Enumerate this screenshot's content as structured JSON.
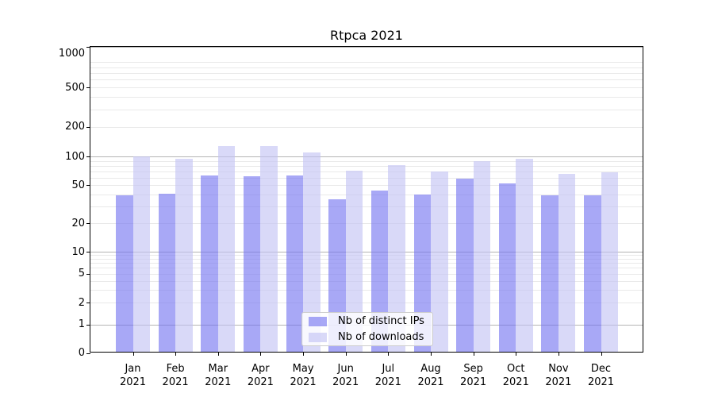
{
  "title": "Rtpca 2021",
  "chart_data": {
    "type": "bar",
    "title": "Rtpca 2021",
    "yscale": "symlog",
    "grid": "horizontal major and minor, log-spaced",
    "legend_position": "lower center inside plot",
    "x_year": "2021",
    "categories": [
      "Jan",
      "Feb",
      "Mar",
      "Apr",
      "May",
      "Jun",
      "Jul",
      "Aug",
      "Sep",
      "Oct",
      "Nov",
      "Dec"
    ],
    "y_ticks": [
      0,
      1,
      2,
      5,
      10,
      20,
      50,
      100,
      200,
      500,
      1000
    ],
    "ylim": [
      0,
      1300
    ],
    "series": [
      {
        "name": "Nb of distinct IPs",
        "color": "rgba(115,115,240,0.62)",
        "values": [
          38,
          40,
          62,
          60,
          62,
          35,
          43,
          39,
          57,
          51,
          38,
          38
        ]
      },
      {
        "name": "Nb of downloads",
        "color": "rgba(193,193,243,0.62)",
        "values": [
          97,
          93,
          125,
          125,
          108,
          69,
          79,
          68,
          87,
          93,
          64,
          66
        ]
      }
    ],
    "colors": {
      "major_gridline": "#b4b4b4",
      "minor_gridline": "#e9e9e9",
      "spine": "#000000",
      "legend_border": "#cccccc"
    }
  }
}
